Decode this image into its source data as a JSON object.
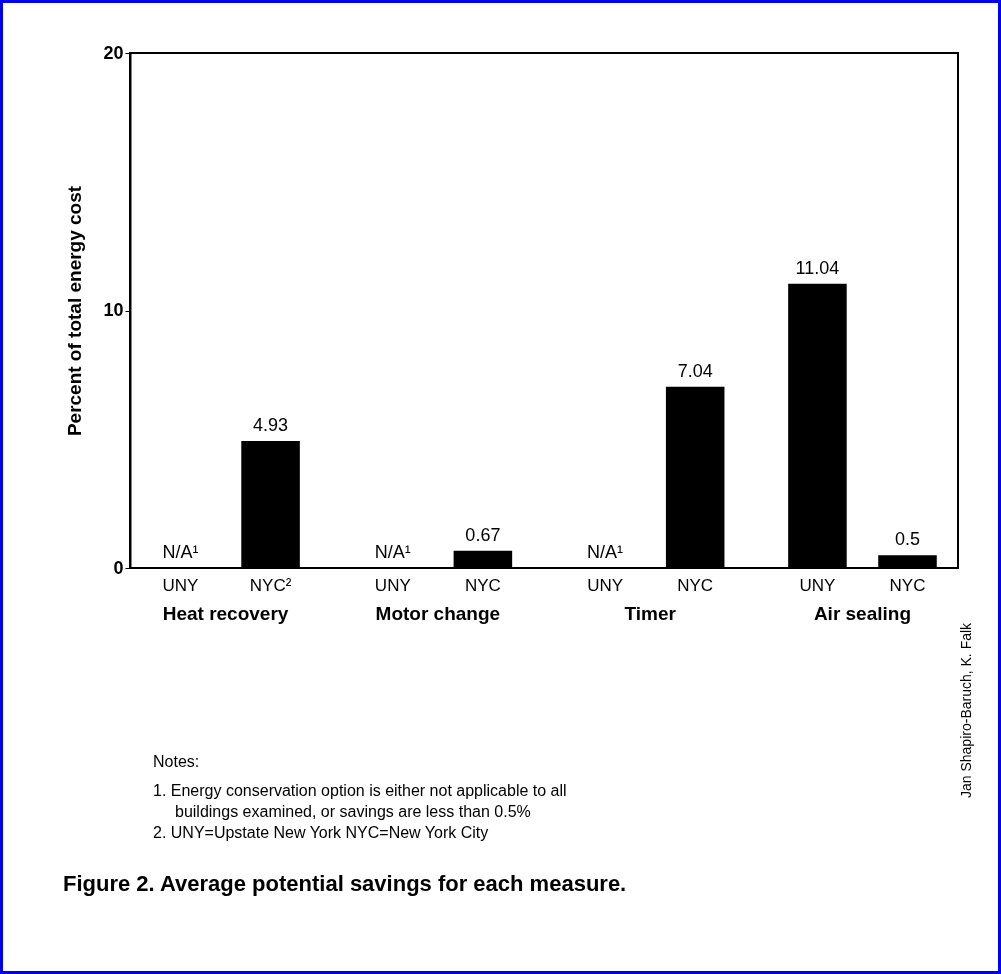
{
  "chart_data": {
    "type": "bar",
    "title": "Figure 2. Average potential savings for each measure.",
    "ylabel": "Percent of total energy cost",
    "categories": [
      "UNY",
      "NYC²",
      "UNY",
      "NYC",
      "UNY",
      "NYC",
      "UNY",
      "NYC"
    ],
    "values": [
      null,
      4.93,
      null,
      0.67,
      null,
      7.04,
      11.04,
      0.5
    ],
    "value_labels": [
      "N/A¹",
      "4.93",
      "N/A¹",
      "0.67",
      "N/A¹",
      "7.04",
      "11.04",
      "0.5"
    ],
    "color": "#000000",
    "ylim": [
      0,
      20
    ],
    "yticks": [
      0,
      10,
      20
    ],
    "grid": false,
    "annotations": [
      "Heat recovery",
      "Motor change",
      "Timer",
      "Air sealing",
      "Notes:",
      "1. Energy conservation option is either not applicable to all buildings examined, or savings are less than 0.5%",
      "2. UNY=Upstate New York     NYC=New York City",
      "Jan Shapiro-Baruch, K. Falk"
    ]
  }
}
